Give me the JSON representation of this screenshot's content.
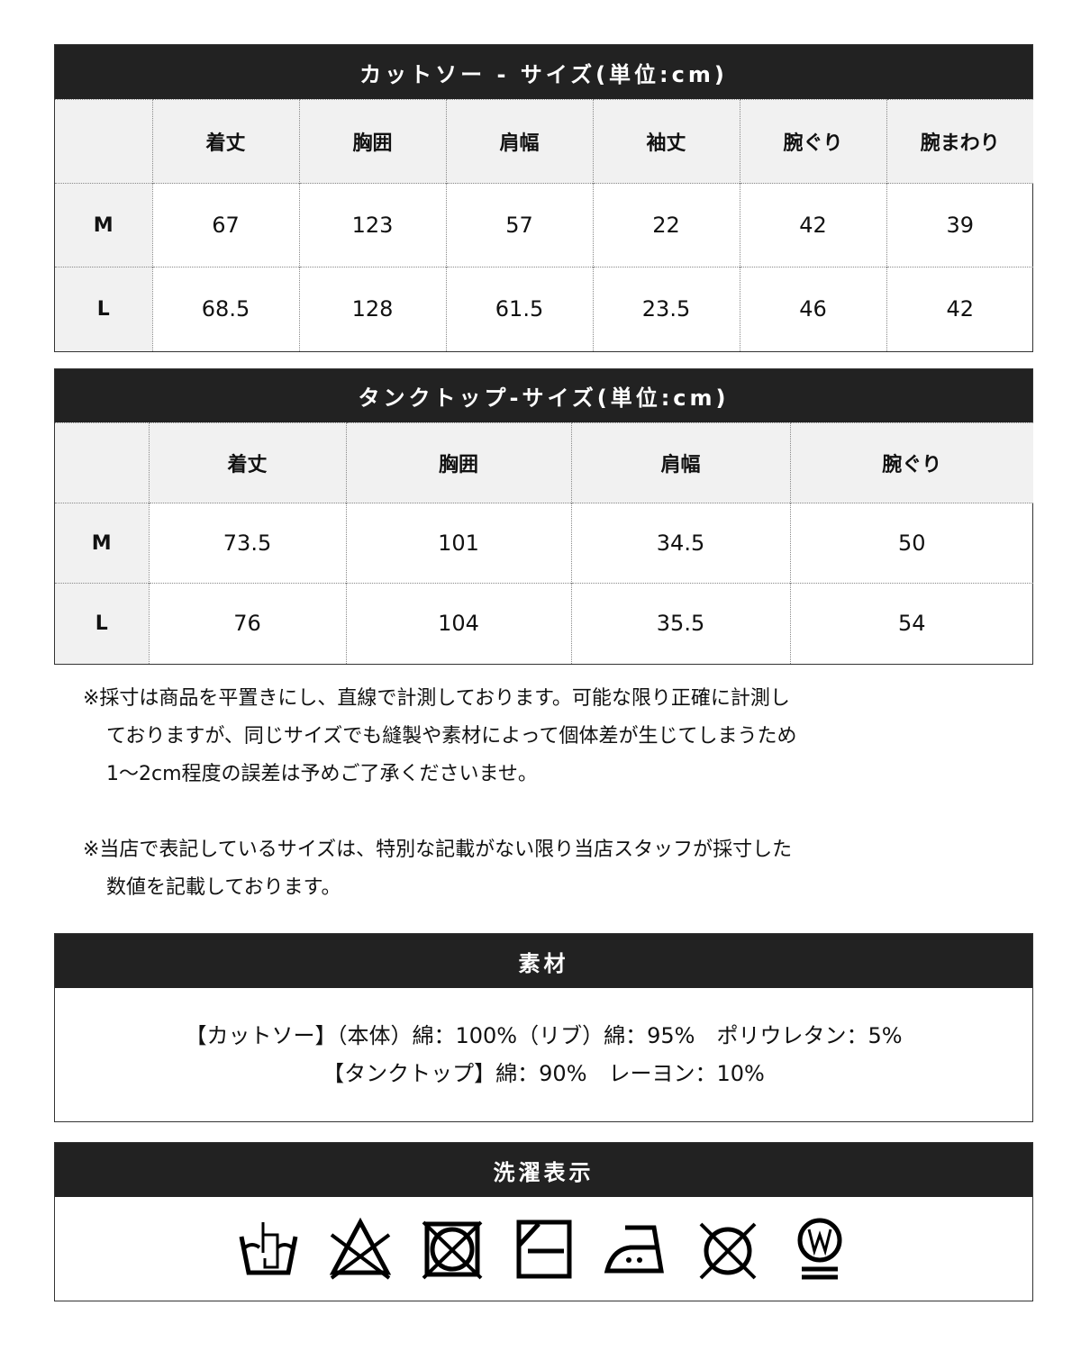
{
  "cutsew": {
    "title": "カットソー - サイズ(単位:cm)",
    "headers": [
      "",
      "着丈",
      "胸囲",
      "肩幅",
      "袖丈",
      "腕ぐり",
      "腕まわり"
    ],
    "rows": [
      [
        "M",
        "67",
        "123",
        "57",
        "22",
        "42",
        "39"
      ],
      [
        "L",
        "68.5",
        "128",
        "61.5",
        "23.5",
        "46",
        "42"
      ]
    ]
  },
  "tank": {
    "title": "タンクトップ-サイズ(単位:cm)",
    "headers": [
      "",
      "着丈",
      "胸囲",
      "肩幅",
      "腕ぐり"
    ],
    "rows": [
      [
        "M",
        "73.5",
        "101",
        "34.5",
        "50"
      ],
      [
        "L",
        "76",
        "104",
        "35.5",
        "54"
      ]
    ]
  },
  "notes": [
    "※採寸は商品を平置きにし、直線で計測しております。可能な限り正確に計測し",
    "ておりますが、同じサイズでも縫製や素材によって個体差が生じてしまうため",
    "1～2cm程度の誤差は予めご了承くださいませ。",
    "",
    "※当店で表記しているサイズは、特別な記載がない限り当店スタッフが採寸した",
    "数値を記載しております。"
  ],
  "material": {
    "title": "素材",
    "lines": [
      "【カットソー】（本体）綿：100%（リブ）綿：95%　ポリウレタン：5%",
      "【タンクトップ】綿：90%　レーヨン：10%"
    ]
  },
  "care": {
    "title": "洗濯表示",
    "icons": [
      "hand-wash-icon",
      "no-bleach-icon",
      "no-tumble-dry-icon",
      "line-dry-shade-icon",
      "iron-low-icon",
      "no-dry-clean-icon",
      "wet-clean-gentle-icon"
    ]
  }
}
